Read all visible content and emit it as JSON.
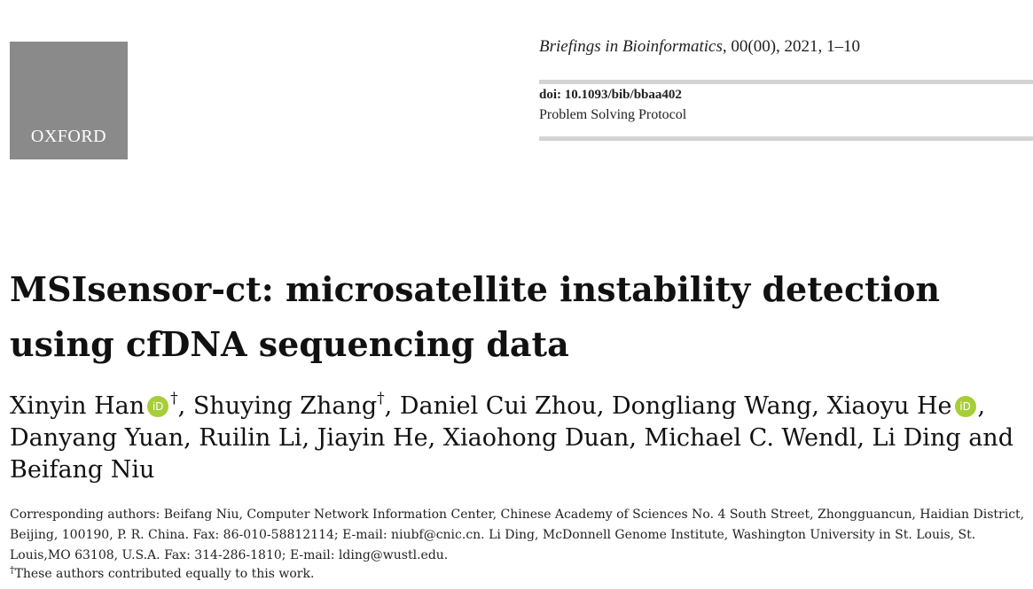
{
  "publisher": {
    "logo_text": "OXFORD",
    "logo_bg": "#8a8a8a"
  },
  "journal": {
    "name": "Briefings in Bioinformatics",
    "citation": ", 00(00), 2021, 1–10"
  },
  "doi": "doi: 10.1093/bib/bbaa402",
  "article_type": "Problem Solving Protocol",
  "title": "MSIsensor-ct: microsatellite instability detection using cfDNA sequencing data",
  "authors": [
    {
      "name": "Xinyin Han",
      "orcid": true,
      "mark": "†",
      "sep": ", "
    },
    {
      "name": "Shuying Zhang",
      "orcid": false,
      "mark": "†",
      "sep": ", "
    },
    {
      "name": "Daniel Cui Zhou",
      "orcid": false,
      "mark": "",
      "sep": ", "
    },
    {
      "name": "Dongliang Wang",
      "orcid": false,
      "mark": "",
      "sep": ", "
    },
    {
      "name": "Xiaoyu He",
      "orcid": true,
      "mark": "",
      "sep": ", "
    },
    {
      "name": "Danyang Yuan",
      "orcid": false,
      "mark": "",
      "sep": ", "
    },
    {
      "name": "Ruilin Li",
      "orcid": false,
      "mark": "",
      "sep": ", "
    },
    {
      "name": "Jiayin He",
      "orcid": false,
      "mark": "",
      "sep": ", "
    },
    {
      "name": "Xiaohong Duan",
      "orcid": false,
      "mark": "",
      "sep": ", "
    },
    {
      "name": "Michael C. Wendl",
      "orcid": false,
      "mark": "",
      "sep": ", "
    },
    {
      "name": "Li Ding",
      "orcid": false,
      "mark": "",
      "sep": " and "
    },
    {
      "name": "Beifang Niu",
      "orcid": false,
      "mark": "",
      "sep": ""
    }
  ],
  "orcid_label": "iD",
  "orcid_color": "#a6ce39",
  "corresponding": "Corresponding authors: Beifang Niu, Computer Network Information Center, Chinese Academy of Sciences No. 4 South Street, Zhongguancun, Haidian District, Beijing, 100190, P. R. China. Fax: 86-010-58812114; E-mail: niubf@cnic.cn. Li Ding, McDonnell Genome Institute, Washington University in St. Louis, St. Louis,MO 63108, U.S.A. Fax: 314-286-1810; E-mail: lding@wustl.edu.",
  "equal_contribution": {
    "mark": "†",
    "text": "These authors contributed equally to this work."
  }
}
